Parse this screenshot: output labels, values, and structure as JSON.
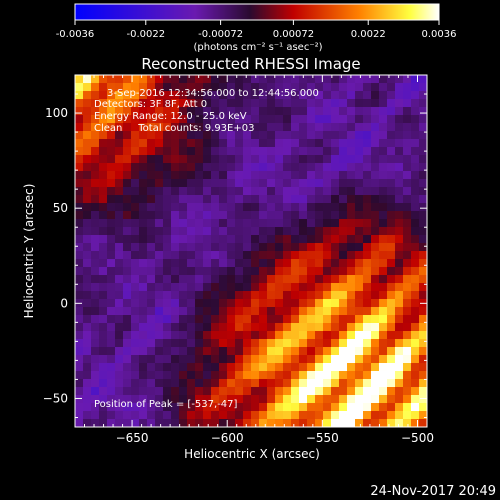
{
  "chart_data": {
    "type": "heatmap",
    "title": "Reconstructed RHESSI Image",
    "colorbar": {
      "ticks": [
        "-0.0036",
        "-0.0022",
        "-0.00072",
        "0.00072",
        "0.0022",
        "0.0036"
      ],
      "tick_values": [
        -0.0036,
        -0.0022,
        -0.00072,
        0.00072,
        0.0022,
        0.0036
      ],
      "unit_label": "(photons cm⁻² s⁻¹ asec⁻²)",
      "range": [
        -0.0036,
        0.0036
      ],
      "colormap": "blue-purple-red-yellow-white"
    },
    "annotations": [
      "3-Sep-2016 12:34:56.000 to 12:44:56.000",
      "Detectors: 3F 8F, Att 0",
      "Energy Range: 12.0 - 25.0 keV",
      "Clean     Total counts: 9.93E+03"
    ],
    "peak_label": "Position of Peak = [-537,-47]",
    "xlabel": "Heliocentric X (arcsec)",
    "ylabel": "Heliocentric Y (arcsec)",
    "xlim": [
      -680,
      -495
    ],
    "ylim": [
      -65,
      120
    ],
    "xticks": [
      -650,
      -600,
      -550,
      -500
    ],
    "xtick_labels": [
      "−650",
      "−600",
      "−550",
      "−500"
    ],
    "yticks": [
      -50,
      0,
      50,
      100
    ],
    "yticks_labels": [
      "−50",
      "0",
      "50",
      "100"
    ],
    "grid": false,
    "footer_timestamp": "24-Nov-2017 20:49",
    "peak": [
      -537,
      -47
    ]
  }
}
